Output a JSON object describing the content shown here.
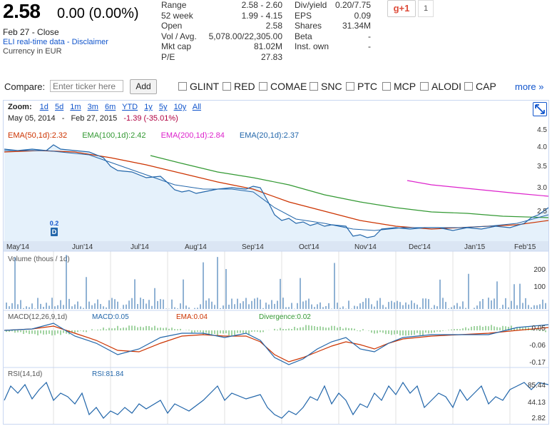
{
  "quote": {
    "price": "2.58",
    "change": "0.00 (0.00%)",
    "close_line": "Feb 27 - Close",
    "disclaimer": "ELI real-time data - Disclaimer",
    "currency": "Currency in EUR"
  },
  "stats_left": [
    {
      "label": "Range",
      "value": "2.58 - 2.60"
    },
    {
      "label": "52 week",
      "value": "1.99 - 4.15"
    },
    {
      "label": "Open",
      "value": "2.58"
    },
    {
      "label": "Vol / Avg.",
      "value": "5,078.00/22,305.00"
    },
    {
      "label": "Mkt cap",
      "value": "81.02M"
    },
    {
      "label": "P/E",
      "value": "27.83"
    }
  ],
  "stats_right": [
    {
      "label": "Div/yield",
      "value": "0.20/7.75"
    },
    {
      "label": "EPS",
      "value": "0.09"
    },
    {
      "label": "Shares",
      "value": "31.34M"
    },
    {
      "label": "Beta",
      "value": "-"
    },
    {
      "label": "Inst. own",
      "value": "-"
    }
  ],
  "social": {
    "gplus_label": "g+1",
    "count": "1"
  },
  "compare": {
    "label": "Compare:",
    "placeholder": "Enter ticker here",
    "add_label": "Add",
    "tickers": [
      "GLINT",
      "RED",
      "COMAE",
      "SNC",
      "PTC",
      "MCP",
      "ALODI",
      "CAP"
    ],
    "more_label": "more »"
  },
  "chart": {
    "zoom_label": "Zoom:",
    "zoom_options": [
      "1d",
      "5d",
      "1m",
      "3m",
      "6m",
      "YTD",
      "1y",
      "5y",
      "10y",
      "All"
    ],
    "range_start": "May 05, 2014",
    "range_sep": "-",
    "range_end": "Feb 27, 2015",
    "range_change": "-1.39 (-35.01%)",
    "legend": [
      {
        "text": "EMA(50,1d):2.32",
        "color": "#cc3300"
      },
      {
        "text": "EMA(100,1d):2.42",
        "color": "#339933"
      },
      {
        "text": "EMA(200,1d):2.84",
        "color": "#dd22cc"
      },
      {
        "text": "EMA(20,1d):2.37",
        "color": "#2266aa"
      }
    ],
    "marker_value": "0.2",
    "marker_letter": "D",
    "month_labels": [
      "May'14",
      "Jun'14",
      "Jul'14",
      "Aug'14",
      "Sep'14",
      "Oct'14",
      "Nov'14",
      "Dec'14",
      "Jan'15",
      "Feb'15"
    ],
    "price_ticks": [
      "4.5",
      "4.0",
      "3.5",
      "3.0",
      "2.5"
    ],
    "volume_title": "Volume (thous / 1d)",
    "volume_ticks": [
      "200",
      "100"
    ],
    "macd_title": "MACD(12,26,9,1d)",
    "macd_value": "MACD:0.05",
    "macd_ema": "EMA:0.04",
    "macd_div": "Divergence:0.02",
    "macd_ticks": [
      "0.05",
      "-0.06",
      "-0.17"
    ],
    "rsi_title": "RSI(14,1d)",
    "rsi_value": "RSI:81.84",
    "rsi_ticks": [
      "85.44",
      "44.13",
      "2.82"
    ]
  },
  "colors": {
    "price_line": "#2266aa",
    "price_fill": "#e5f1fb",
    "ema50": "#cc3300",
    "ema100": "#339933",
    "ema200": "#dd22cc",
    "link": "#1155cc",
    "macd_hist": "#44aa44"
  },
  "chart_data": {
    "type": "line",
    "x": [
      "May'14",
      "Jun'14",
      "Jul'14",
      "Aug'14",
      "Sep'14",
      "Oct'14",
      "Nov'14",
      "Dec'14",
      "Jan'15",
      "Feb'15"
    ],
    "series": [
      {
        "name": "EMA(20,1d)",
        "values": [
          3.9,
          3.85,
          3.5,
          3.05,
          3.0,
          2.15,
          2.0,
          2.1,
          2.2,
          2.37
        ]
      },
      {
        "name": "EMA(50,1d)",
        "values": [
          3.9,
          3.9,
          3.65,
          3.3,
          3.0,
          2.5,
          2.2,
          2.2,
          2.2,
          2.32
        ]
      },
      {
        "name": "EMA(100,1d)",
        "values": [
          null,
          null,
          3.75,
          3.45,
          3.2,
          2.9,
          2.65,
          2.5,
          2.42,
          2.42
        ]
      },
      {
        "name": "EMA(200,1d)",
        "values": [
          null,
          null,
          null,
          null,
          null,
          null,
          null,
          3.2,
          3.0,
          2.84
        ]
      }
    ],
    "ylim": [
      1.9,
      4.5
    ]
  }
}
